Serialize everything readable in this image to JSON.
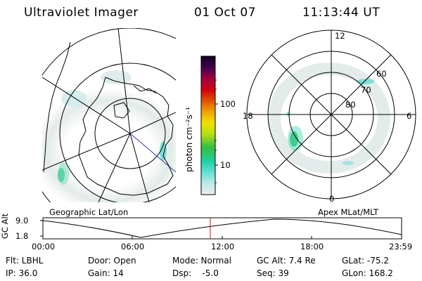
{
  "header": {
    "instrument": "Ultraviolet Imager",
    "date": "01 Oct 07",
    "time": "11:13:44 UT"
  },
  "colorbar": {
    "unit_label": "photon cm⁻²s⁻¹",
    "ticks": [
      "100",
      "10"
    ]
  },
  "left_map": {
    "projection_label": "Geographic Lat/Lon"
  },
  "right_map": {
    "projection_label": "Apex MLat/MLT",
    "mlt_labels": [
      "12",
      "18",
      "6",
      "0"
    ],
    "mlat_labels": [
      "60",
      "70",
      "80"
    ]
  },
  "altitude_plot": {
    "ylabel": "GC Alt",
    "ytick_top": "9.0",
    "ytick_bottom": "1.8",
    "xticks": [
      "00:00",
      "06:00",
      "12:00",
      "18:00",
      "23:59"
    ],
    "marker_color": "#e00000"
  },
  "status": {
    "filter": "Flt: LBHL",
    "ip": "IP: 36.0",
    "door": "Door: Open",
    "gain": "Gain: 14",
    "mode": "Mode: Normal",
    "dsp": "Dsp:    -5.0",
    "gc_alt": "GC Alt: 7.4 Re",
    "seq": "Seq: 39",
    "glat": "GLat: -75.2",
    "glon": "GLon: 168.2"
  }
}
